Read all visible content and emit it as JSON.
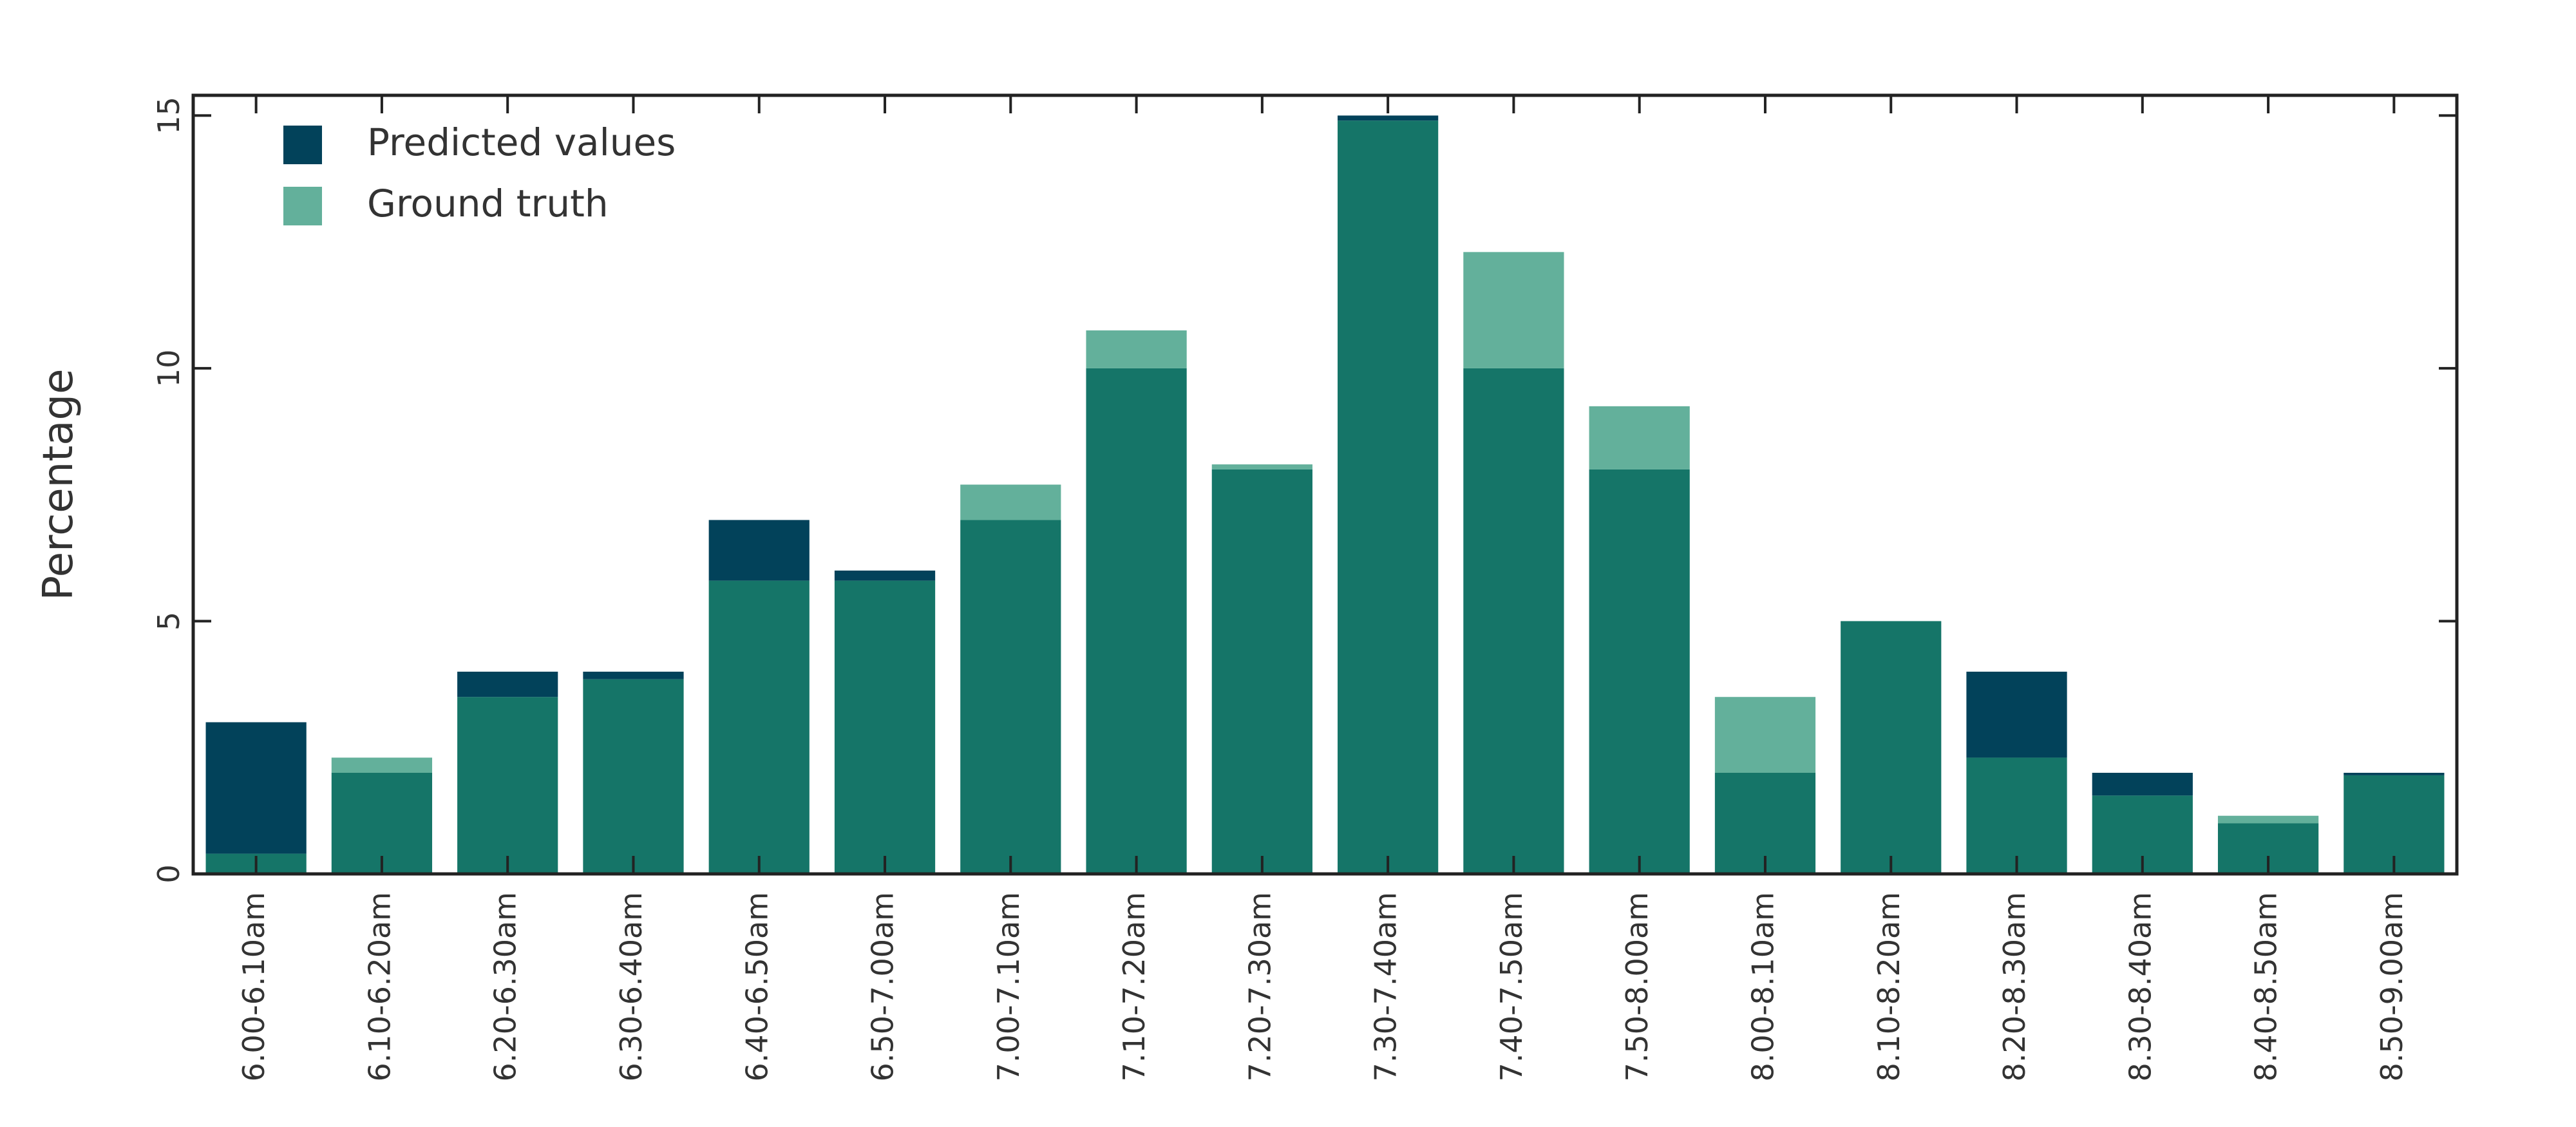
{
  "chart_data": {
    "type": "bar",
    "title": "",
    "xlabel": "",
    "ylabel": "Percentage",
    "ylim": [
      0,
      15.4
    ],
    "yticks": [
      0,
      5,
      10,
      15
    ],
    "grid": false,
    "legend_position": "top-left",
    "overlap_color": "#157568",
    "categories": [
      "6.00-6.10am",
      "6.10-6.20am",
      "6.20-6.30am",
      "6.30-6.40am",
      "6.40-6.50am",
      "6.50-7.00am",
      "7.00-7.10am",
      "7.10-7.20am",
      "7.20-7.30am",
      "7.30-7.40am",
      "7.40-7.50am",
      "7.50-8.00am",
      "8.00-8.10am",
      "8.10-8.20am",
      "8.20-8.30am",
      "8.30-8.40am",
      "8.40-8.50am",
      "8.50-9.00am"
    ],
    "series": [
      {
        "name": "Predicted values",
        "color": "#02425a",
        "values": [
          3.0,
          2.0,
          4.0,
          4.0,
          7.0,
          6.0,
          7.0,
          10.0,
          8.0,
          15.0,
          10.0,
          8.0,
          2.0,
          5.0,
          4.0,
          2.0,
          1.0,
          2.0
        ]
      },
      {
        "name": "Ground truth",
        "color": "#63b09b",
        "values": [
          0.4,
          2.3,
          3.5,
          3.85,
          5.8,
          5.8,
          7.7,
          10.75,
          8.1,
          14.9,
          12.3,
          9.25,
          3.5,
          5.0,
          2.3,
          1.55,
          1.15,
          1.95
        ]
      }
    ]
  }
}
